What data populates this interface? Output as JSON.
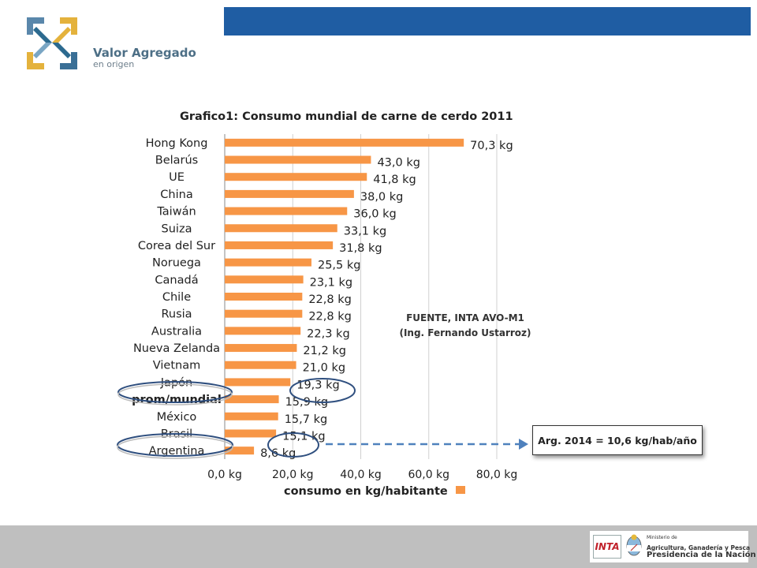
{
  "header": {
    "brand_line1": "Valor Agregado",
    "brand_line2": "en origen",
    "bar_color": "#1f5da3"
  },
  "chart_data": {
    "type": "bar",
    "orientation": "horizontal",
    "title": "Grafico1:  Consumo mundial de carne de cerdo 2011",
    "xlabel": "consumo en kg/habitante",
    "categories": [
      "Hong Kong",
      "Belarús",
      "UE",
      "China",
      "Taiwán",
      "Suiza",
      "Corea del Sur",
      "Noruega",
      "Canadá",
      "Chile",
      "Rusia",
      "Australia",
      "Nueva Zelanda",
      "Vietnam",
      "Japón",
      "prom/mundial",
      "México",
      "Brasil",
      "Argentina"
    ],
    "values": [
      70.3,
      43.0,
      41.8,
      38.0,
      36.0,
      33.1,
      31.8,
      25.5,
      23.1,
      22.8,
      22.8,
      22.3,
      21.2,
      21.0,
      19.3,
      15.9,
      15.7,
      15.1,
      8.6
    ],
    "value_labels": [
      "70,3 kg",
      "43,0 kg",
      "41,8 kg",
      "38,0 kg",
      "36,0 kg",
      "33,1 kg",
      "31,8 kg",
      "25,5 kg",
      "23,1 kg",
      "22,8 kg",
      "22,8 kg",
      "22,3 kg",
      "21,2 kg",
      "21,0 kg",
      "19,3 kg",
      "15,9 kg",
      "15,7 kg",
      "15,1 kg",
      "8,6 kg"
    ],
    "xlim": [
      0,
      80
    ],
    "xticks": [
      "0,0 kg",
      "20,0 kg",
      "40,0 kg",
      "60,0 kg",
      "80,0 kg"
    ],
    "xtick_values": [
      0,
      20,
      40,
      60,
      80
    ],
    "grid": true,
    "bar_color": "#f79646",
    "legend_placement": "bottom"
  },
  "annotations": {
    "source_line1": "FUENTE, INTA AVO-M1",
    "source_line2": "(Ing. Fernando Ustarroz)",
    "argentina_box": "Arg. 2014 = 10,6 kg/hab/año"
  },
  "footer": {
    "inta_logo": "INTA",
    "ministry_line1": "Ministerio de",
    "ministry_line2": "Agricultura, Ganadería y Pesca",
    "ministry_line3": "Presidencia de la Nación"
  }
}
